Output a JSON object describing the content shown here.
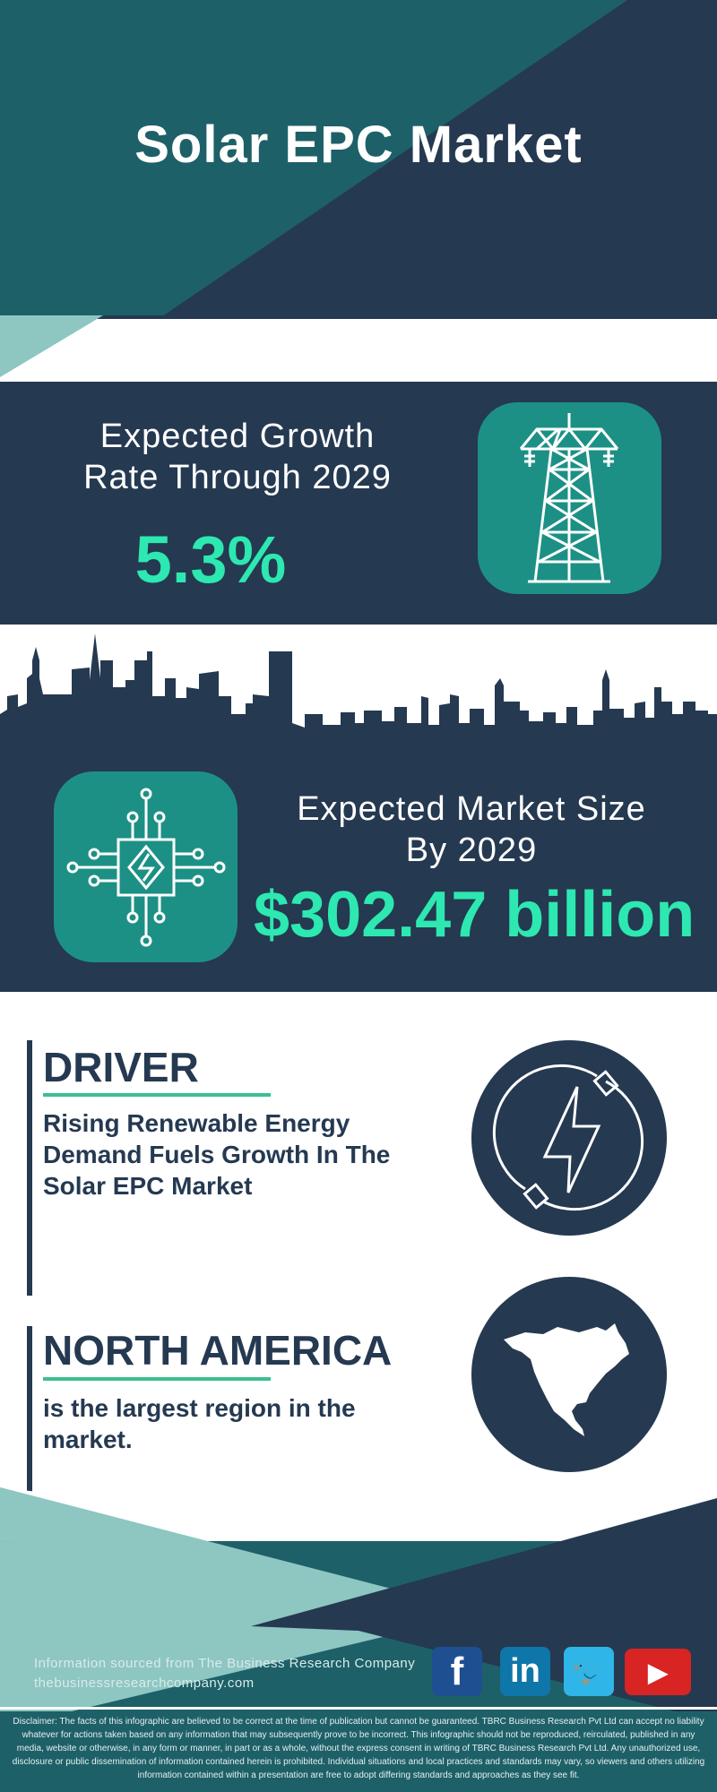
{
  "colors": {
    "navy": "#253951",
    "teal": "#1e6068",
    "icon_teal": "#1d9085",
    "accent": "#2de8b0",
    "light_teal": "#8ec6c2",
    "underline": "#3dbf8f"
  },
  "header": {
    "title": "Solar EPC Market"
  },
  "growth": {
    "label_line1": "Expected Growth",
    "label_line2": "Rate Through 2029",
    "value": "5.3%",
    "icon": "power-tower-icon"
  },
  "market_size": {
    "label_line1": "Expected Market Size",
    "label_line2": "By 2029",
    "value": "$302.47 billion",
    "icon": "circuit-chip-icon"
  },
  "driver": {
    "heading": "DRIVER",
    "text": "Rising Renewable Energy Demand Fuels Growth In The Solar EPC Market",
    "icon": "lightning-plug-icon"
  },
  "region": {
    "heading": "NORTH AMERICA",
    "text": "is the largest region in the market.",
    "icon": "north-america-map-icon"
  },
  "footer": {
    "source": "Information sourced from The Business Research Company",
    "website": "thebusinessresearchcompany.com",
    "social": [
      {
        "name": "facebook",
        "glyph": "f",
        "color": "#1d4f91"
      },
      {
        "name": "linkedin",
        "glyph": "in",
        "color": "#0e76a8"
      },
      {
        "name": "twitter",
        "glyph": "🐦",
        "color": "#2fb5e8"
      },
      {
        "name": "youtube",
        "glyph": "▶",
        "color": "#d92424"
      }
    ],
    "disclaimer": "Disclaimer: The facts of this infographic are believed to be correct at the time of publication but cannot be guaranteed. TBRC Business Research Pvt Ltd can accept no liability whatever for actions taken based on any information that may subsequently prove to be incorrect. This infographic should not be reproduced, reirculated, published in any media, website or otherwise, in any form or manner, in part or as a whole, without the express consent in writing of TBRC Business Research Pvt Ltd. Any unauthorized use, disclosure or public dissemination of information contained herein is prohibited. Individual situations and local practices and standards may vary, so viewers and others utilizing information contained within a presentation are free to adopt differing standards and approaches as they see fit."
  }
}
